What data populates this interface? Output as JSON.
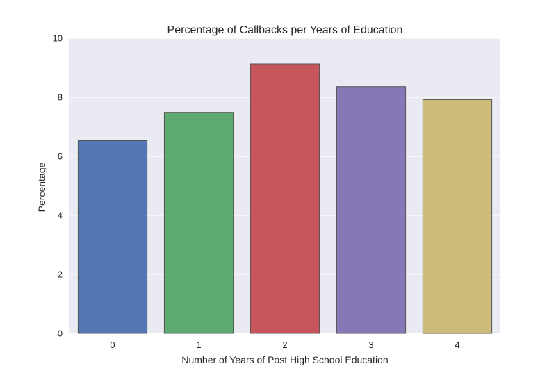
{
  "chart_data": {
    "type": "bar",
    "title": "Percentage of Callbacks per Years of Education",
    "xlabel": "Number of Years of Post High School Education",
    "ylabel": "Percentage",
    "categories": [
      "0",
      "1",
      "2",
      "3",
      "4"
    ],
    "values": [
      6.53,
      7.49,
      9.13,
      8.36,
      7.92
    ],
    "ylim": [
      0,
      10
    ],
    "yticks": [
      "0",
      "2",
      "4",
      "6",
      "8",
      "10"
    ],
    "grid": true,
    "colors": {
      "background": "#EAEAF2",
      "grid": "#FFFFFF",
      "bars": [
        "#4C72B0",
        "#55A868",
        "#C44E52",
        "#8172B2",
        "#CCB974"
      ],
      "bar_edge": "#555555"
    }
  }
}
